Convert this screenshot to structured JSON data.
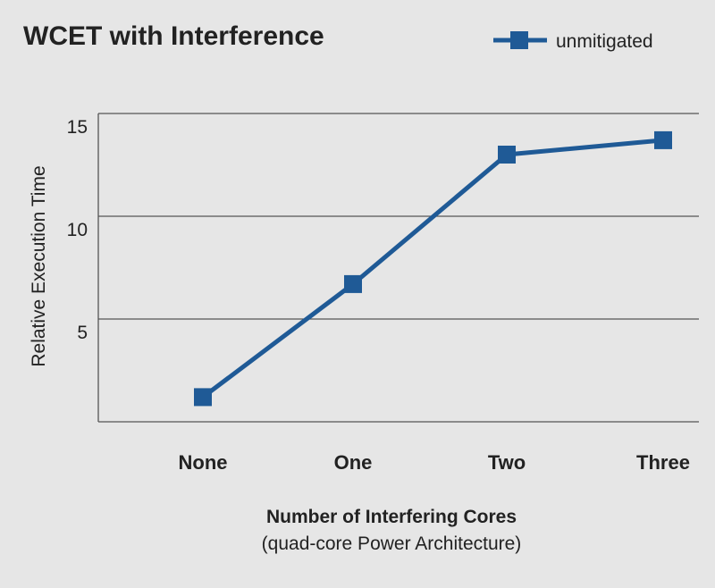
{
  "chart_data": {
    "type": "line",
    "title": "WCET with Interference",
    "xlabel": "Number of Interfering Cores",
    "xlabel_sub": "(quad-core Power Architecture)",
    "ylabel": "Relative Execution Time",
    "categories": [
      "None",
      "One",
      "Two",
      "Three"
    ],
    "ylim": [
      0,
      15
    ],
    "yticks": [
      5,
      10,
      15
    ],
    "grid": true,
    "legend_position": "top-right",
    "series": [
      {
        "name": "unmitigated",
        "values": [
          1.2,
          6.7,
          13.0,
          13.7
        ]
      }
    ]
  },
  "colors": {
    "background": "#e6e6e6",
    "series": "#1f5a96",
    "text": "#222222",
    "grid": "#555555"
  }
}
